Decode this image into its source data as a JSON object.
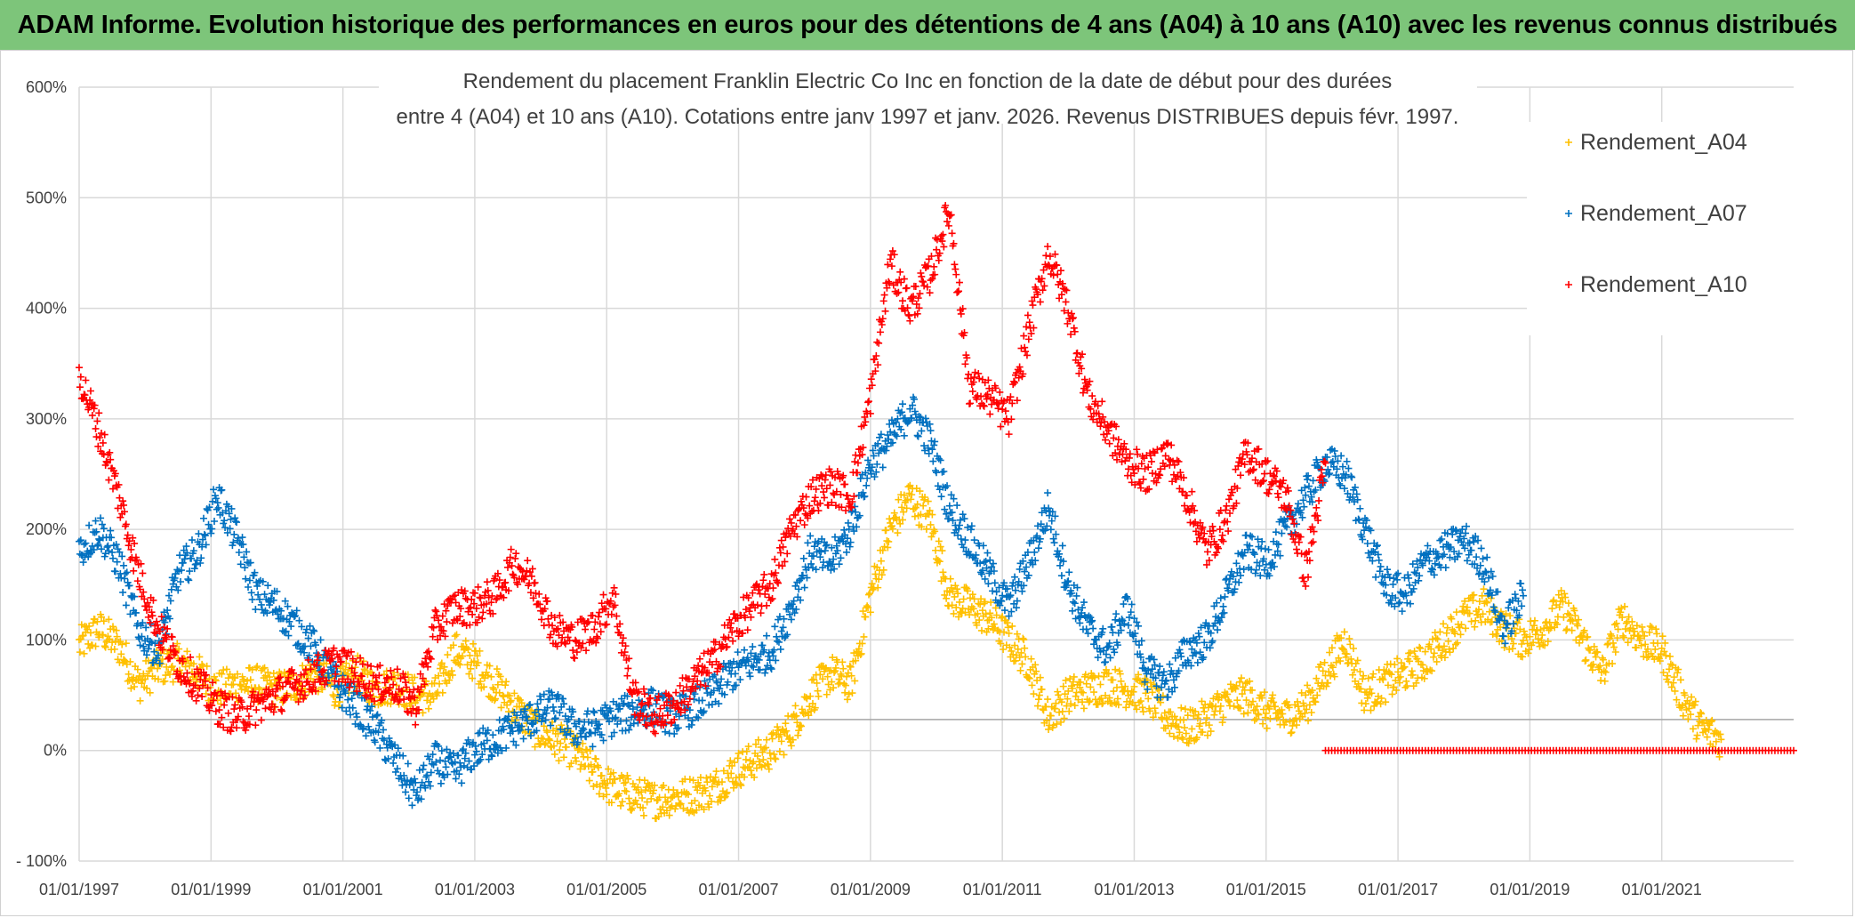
{
  "banner": {
    "title": "ADAM Informe. Evolution historique des performances en euros pour des détentions de 4 ans (A04) à 10 ans (A10) avec les revenus connus distribués",
    "background": "#7dc57a"
  },
  "chart_data": {
    "type": "scatter",
    "title_lines": [
      "Rendement du placement Franklin Electric Co Inc en fonction de la date de début pour des durées",
      "entre 4 (A04) et 10 ans (A10). Cotations entre janv 1997 et janv. 2026. Revenus DISTRIBUES depuis févr. 1997."
    ],
    "x_range": [
      1997.0,
      2023.0
    ],
    "ylim": [
      -100,
      600
    ],
    "y_ticks": [
      -100,
      0,
      100,
      200,
      300,
      400,
      500,
      600
    ],
    "y_tick_labels": [
      "- 100%",
      "0%",
      "100%",
      "200%",
      "300%",
      "400%",
      "500%",
      "600%"
    ],
    "x_ticks": [
      1997,
      1999,
      2001,
      2003,
      2005,
      2007,
      2009,
      2011,
      2013,
      2015,
      2017,
      2019,
      2021
    ],
    "x_tick_labels": [
      "01/01/1997",
      "01/01/1999",
      "01/01/2001",
      "01/01/2003",
      "01/01/2005",
      "01/01/2007",
      "01/01/2009",
      "01/01/2011",
      "01/01/2013",
      "01/01/2015",
      "01/01/2017",
      "01/01/2019",
      "01/01/2021"
    ],
    "grid": true,
    "reference_line_y": 28,
    "legend_position": "top-right",
    "marker": "+",
    "series": [
      {
        "name": "Rendement_A04",
        "color": "#ffc000",
        "x": [
          1997.0,
          1997.3,
          1997.6,
          1997.9,
          1998.2,
          1998.5,
          1998.8,
          1999.1,
          1999.4,
          1999.7,
          2000.0,
          2000.3,
          2000.6,
          2000.9,
          2001.2,
          2001.5,
          2001.8,
          2002.1,
          2002.4,
          2002.7,
          2003.0,
          2003.3,
          2003.6,
          2003.9,
          2004.2,
          2004.5,
          2004.8,
          2005.1,
          2005.4,
          2005.7,
          2006.0,
          2006.3,
          2006.6,
          2006.9,
          2007.2,
          2007.5,
          2007.8,
          2008.1,
          2008.4,
          2008.7,
          2009.0,
          2009.3,
          2009.6,
          2009.9,
          2010.2,
          2010.5,
          2010.8,
          2011.1,
          2011.4,
          2011.7,
          2012.0,
          2012.3,
          2012.6,
          2012.9,
          2013.2,
          2013.5,
          2013.8,
          2014.1,
          2014.4,
          2014.7,
          2015.0,
          2015.3,
          2015.6,
          2015.9,
          2016.2,
          2016.5,
          2016.8,
          2017.1,
          2017.4,
          2017.7,
          2018.0,
          2018.3,
          2018.6,
          2018.9,
          2019.2,
          2019.5,
          2019.8,
          2020.1,
          2020.4,
          2020.7,
          2021.0,
          2021.3,
          2021.6,
          2021.9
        ],
        "y": [
          95,
          110,
          95,
          60,
          75,
          80,
          70,
          55,
          60,
          60,
          55,
          60,
          70,
          55,
          70,
          55,
          60,
          50,
          50,
          90,
          80,
          60,
          40,
          20,
          10,
          0,
          -20,
          -35,
          -40,
          -45,
          -42,
          -40,
          -35,
          -20,
          -10,
          0,
          20,
          50,
          70,
          60,
          140,
          200,
          230,
          210,
          140,
          130,
          120,
          100,
          80,
          30,
          50,
          55,
          60,
          55,
          50,
          30,
          20,
          30,
          45,
          50,
          35,
          30,
          40,
          70,
          100,
          50,
          60,
          70,
          80,
          100,
          120,
          130,
          110,
          100,
          110,
          130,
          100,
          70,
          120,
          100,
          90,
          50,
          20,
          10
        ]
      },
      {
        "name": "Rendement_A07",
        "color": "#0070c0",
        "x": [
          1997.0,
          1997.3,
          1997.6,
          1997.9,
          1998.2,
          1998.5,
          1998.8,
          1999.1,
          1999.4,
          1999.7,
          2000.0,
          2000.3,
          2000.6,
          2000.9,
          2001.2,
          2001.5,
          2001.8,
          2002.1,
          2002.4,
          2002.7,
          2003.0,
          2003.3,
          2003.6,
          2003.9,
          2004.2,
          2004.5,
          2004.8,
          2005.1,
          2005.4,
          2005.7,
          2006.0,
          2006.3,
          2006.6,
          2006.9,
          2007.2,
          2007.5,
          2007.8,
          2008.1,
          2008.4,
          2008.7,
          2009.0,
          2009.3,
          2009.6,
          2009.9,
          2010.2,
          2010.5,
          2010.8,
          2011.1,
          2011.4,
          2011.7,
          2012.0,
          2012.3,
          2012.6,
          2012.9,
          2013.2,
          2013.5,
          2013.8,
          2014.1,
          2014.4,
          2014.7,
          2015.0,
          2015.3,
          2015.6,
          2015.9,
          2016.2,
          2016.5,
          2016.8,
          2017.1,
          2017.4,
          2017.7,
          2018.0,
          2018.3,
          2018.6,
          2018.9
        ],
        "y": [
          180,
          200,
          170,
          110,
          90,
          160,
          180,
          230,
          190,
          140,
          130,
          110,
          90,
          60,
          40,
          20,
          -10,
          -40,
          -10,
          -20,
          0,
          10,
          20,
          30,
          40,
          20,
          20,
          30,
          35,
          40,
          30,
          40,
          50,
          70,
          80,
          90,
          130,
          180,
          170,
          200,
          260,
          280,
          310,
          280,
          220,
          190,
          160,
          130,
          170,
          220,
          150,
          110,
          90,
          130,
          70,
          60,
          90,
          100,
          140,
          180,
          170,
          200,
          230,
          260,
          250,
          200,
          150,
          140,
          170,
          180,
          190,
          170,
          110,
          140
        ]
      },
      {
        "name": "Rendement_A10",
        "color": "#ff0000",
        "x": [
          1997.0,
          1997.3,
          1997.6,
          1997.9,
          1998.2,
          1998.5,
          1998.8,
          1999.1,
          1999.4,
          1999.7,
          2000.0,
          2000.3,
          2000.6,
          2000.9,
          2001.2,
          2001.5,
          2001.8,
          2002.1,
          2002.4,
          2002.7,
          2003.0,
          2003.3,
          2003.6,
          2003.9,
          2004.2,
          2004.5,
          2004.8,
          2005.1,
          2005.4,
          2005.7,
          2006.0,
          2006.3,
          2006.6,
          2006.9,
          2007.2,
          2007.5,
          2007.8,
          2008.1,
          2008.4,
          2008.7,
          2009.0,
          2009.3,
          2009.6,
          2009.9,
          2010.2,
          2010.5,
          2010.8,
          2011.1,
          2011.4,
          2011.7,
          2012.0,
          2012.3,
          2012.6,
          2012.9,
          2013.2,
          2013.5,
          2013.8,
          2014.1,
          2014.4,
          2014.7,
          2015.0,
          2015.3,
          2015.6,
          2015.9
        ],
        "y": [
          340,
          290,
          230,
          160,
          110,
          80,
          60,
          40,
          30,
          40,
          50,
          60,
          70,
          80,
          70,
          60,
          60,
          40,
          110,
          130,
          130,
          140,
          170,
          150,
          110,
          100,
          110,
          140,
          50,
          30,
          40,
          60,
          80,
          110,
          130,
          150,
          200,
          230,
          240,
          230,
          320,
          440,
          400,
          430,
          490,
          330,
          320,
          300,
          380,
          450,
          400,
          320,
          290,
          260,
          250,
          270,
          230,
          180,
          210,
          270,
          250,
          230,
          160,
          260
        ]
      },
      {
        "name": "Rendement_A10 (zero segment)",
        "color": "#ff0000",
        "x_start": 2015.9,
        "x_end": 2023.0,
        "y_value": 0
      }
    ]
  }
}
